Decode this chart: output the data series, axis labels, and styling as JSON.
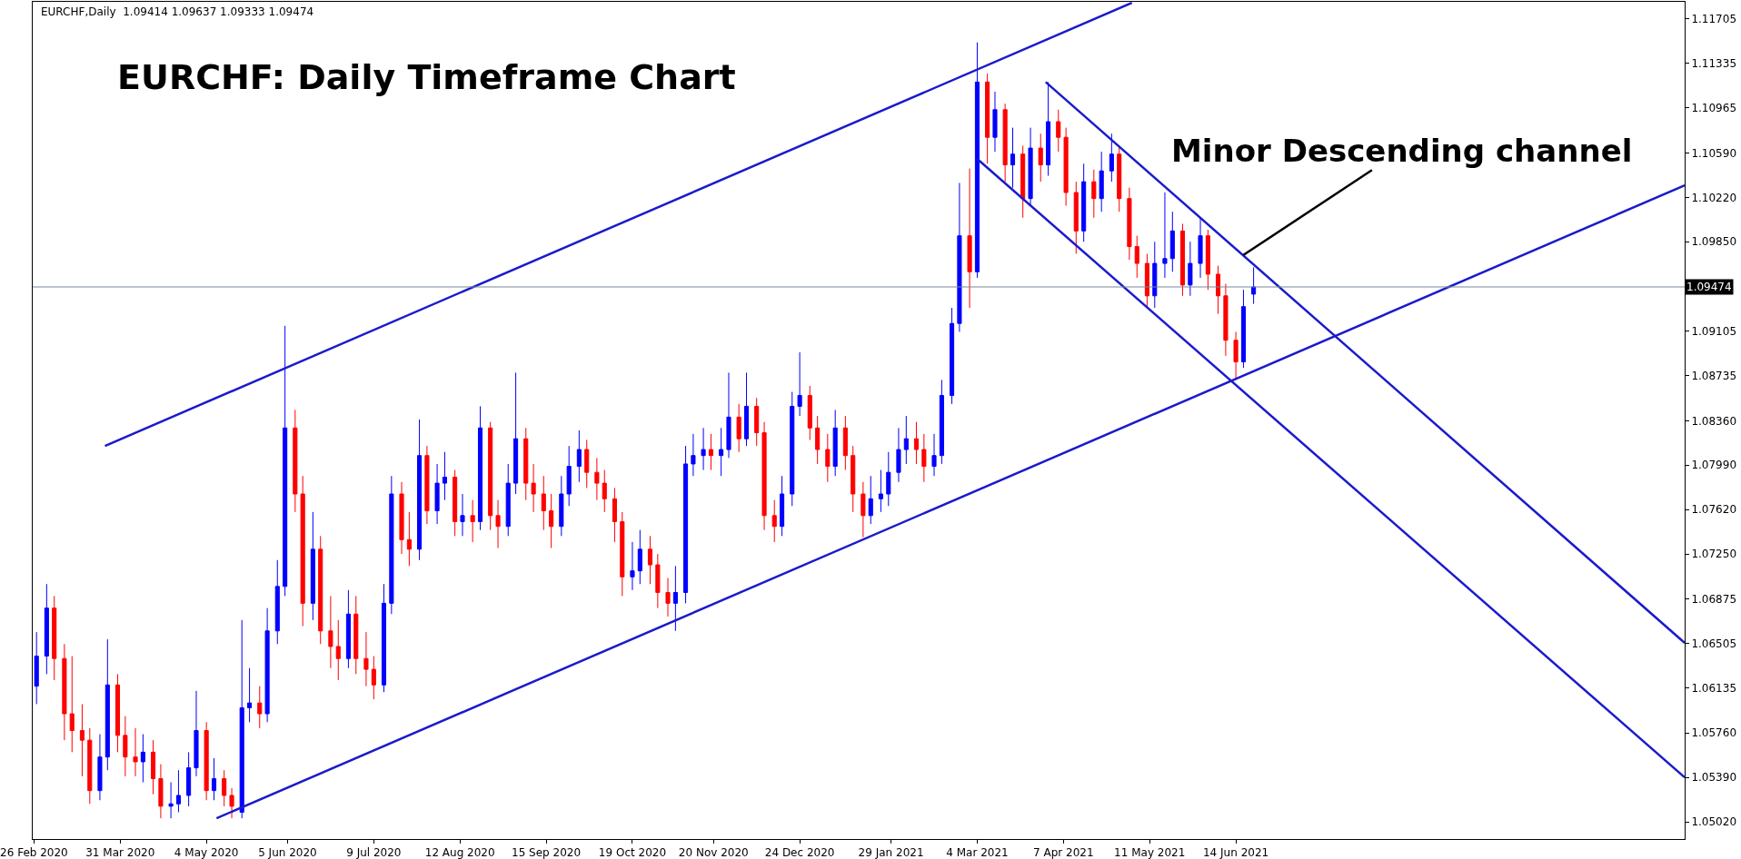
{
  "chart_data": {
    "type": "candlestick",
    "title": "EURCHF: Daily Timeframe Chart",
    "subtitle": "EURCHF,Daily  1.09414 1.09637 1.09333 1.09474",
    "x": [
      "2020-02-27",
      "2020-03-02",
      "2020-03-05",
      "2020-03-09",
      "2020-03-12",
      "2020-03-16",
      "2020-03-19",
      "2020-03-23",
      "2020-03-26",
      "2020-03-30",
      "2020-04-02",
      "2020-04-06",
      "2020-04-09",
      "2020-04-13",
      "2020-04-16",
      "2020-04-20",
      "2020-04-23",
      "2020-04-27",
      "2020-04-30",
      "2020-05-04",
      "2020-05-07",
      "2020-05-11",
      "2020-05-14",
      "2020-05-18",
      "2020-05-21",
      "2020-05-25",
      "2020-05-28",
      "2020-06-01",
      "2020-06-04",
      "2020-06-08",
      "2020-06-11",
      "2020-06-15",
      "2020-06-18",
      "2020-06-22",
      "2020-06-25",
      "2020-06-29",
      "2020-07-02",
      "2020-07-06",
      "2020-07-09",
      "2020-07-13",
      "2020-07-16",
      "2020-07-20",
      "2020-07-23",
      "2020-07-27",
      "2020-07-30",
      "2020-08-03",
      "2020-08-06",
      "2020-08-10",
      "2020-08-13",
      "2020-08-17",
      "2020-08-20",
      "2020-08-24",
      "2020-08-27",
      "2020-08-31",
      "2020-09-03",
      "2020-09-07",
      "2020-09-10",
      "2020-09-14",
      "2020-09-17",
      "2020-09-21",
      "2020-09-24",
      "2020-09-28",
      "2020-10-01",
      "2020-10-05",
      "2020-10-08",
      "2020-10-12",
      "2020-10-15",
      "2020-10-19",
      "2020-10-22",
      "2020-10-26",
      "2020-10-29",
      "2020-11-02",
      "2020-11-05",
      "2020-11-09",
      "2020-11-12",
      "2020-11-16",
      "2020-11-19",
      "2020-11-23",
      "2020-11-26",
      "2020-11-30",
      "2020-12-03",
      "2020-12-07",
      "2020-12-10",
      "2020-12-14",
      "2020-12-17",
      "2020-12-21",
      "2020-12-24",
      "2020-12-28",
      "2020-12-31",
      "2021-01-04",
      "2021-01-07",
      "2021-01-11",
      "2021-01-14",
      "2021-01-18",
      "2021-01-21",
      "2021-01-25",
      "2021-01-28",
      "2021-02-01",
      "2021-02-04",
      "2021-02-08",
      "2021-02-11",
      "2021-02-15",
      "2021-02-18",
      "2021-02-22",
      "2021-02-25",
      "2021-03-01",
      "2021-03-04",
      "2021-03-08",
      "2021-03-11",
      "2021-03-15",
      "2021-03-18",
      "2021-03-22",
      "2021-03-25",
      "2021-03-29",
      "2021-04-01",
      "2021-04-05",
      "2021-04-08",
      "2021-04-12",
      "2021-04-15",
      "2021-04-19",
      "2021-04-22",
      "2021-04-26",
      "2021-04-29",
      "2021-05-03",
      "2021-05-06",
      "2021-05-10",
      "2021-05-13",
      "2021-05-17",
      "2021-05-20",
      "2021-05-24",
      "2021-05-27",
      "2021-05-31",
      "2021-06-03",
      "2021-06-07",
      "2021-06-10",
      "2021-06-14",
      "2021-06-17",
      "2021-06-21"
    ],
    "ohlc": [
      [
        1.0615,
        1.066,
        1.06,
        1.064
      ],
      [
        1.064,
        1.07,
        1.0625,
        1.068
      ],
      [
        1.068,
        1.069,
        1.062,
        1.0638
      ],
      [
        1.0638,
        1.065,
        1.057,
        1.0592
      ],
      [
        1.0592,
        1.064,
        1.056,
        1.0578
      ],
      [
        1.0578,
        1.06,
        1.054,
        1.057
      ],
      [
        1.057,
        1.058,
        1.0517,
        1.0528
      ],
      [
        1.0528,
        1.0575,
        1.052,
        1.0556
      ],
      [
        1.0556,
        1.0654,
        1.0545,
        1.0616
      ],
      [
        1.0616,
        1.0625,
        1.056,
        1.0574
      ],
      [
        1.0574,
        1.059,
        1.054,
        1.0556
      ],
      [
        1.0556,
        1.058,
        1.054,
        1.0552
      ],
      [
        1.0552,
        1.0575,
        1.0535,
        1.056
      ],
      [
        1.056,
        1.057,
        1.0525,
        1.0538
      ],
      [
        1.0538,
        1.055,
        1.0505,
        1.0515
      ],
      [
        1.0515,
        1.0535,
        1.0505,
        1.0517
      ],
      [
        1.0517,
        1.0545,
        1.051,
        1.0524
      ],
      [
        1.0524,
        1.056,
        1.0515,
        1.0547
      ],
      [
        1.0547,
        1.0611,
        1.054,
        1.0578
      ],
      [
        1.0578,
        1.0585,
        1.052,
        1.0528
      ],
      [
        1.0528,
        1.0555,
        1.052,
        1.0538
      ],
      [
        1.0538,
        1.0545,
        1.0515,
        1.0524
      ],
      [
        1.0524,
        1.053,
        1.0505,
        1.0515
      ],
      [
        1.051,
        1.067,
        1.0505,
        1.0597
      ],
      [
        1.0597,
        1.063,
        1.0585,
        1.0601
      ],
      [
        1.0601,
        1.0615,
        1.058,
        1.0592
      ],
      [
        1.0592,
        1.068,
        1.0585,
        1.0661
      ],
      [
        1.0661,
        1.072,
        1.065,
        1.0698
      ],
      [
        1.0698,
        1.0915,
        1.069,
        1.083
      ],
      [
        1.083,
        1.0845,
        1.076,
        1.0775
      ],
      [
        1.0775,
        1.079,
        1.0665,
        1.0684
      ],
      [
        1.0684,
        1.076,
        1.067,
        1.0729
      ],
      [
        1.0729,
        1.074,
        1.065,
        1.0661
      ],
      [
        1.0661,
        1.069,
        1.063,
        1.0648
      ],
      [
        1.0648,
        1.067,
        1.062,
        1.0638
      ],
      [
        1.0638,
        1.0695,
        1.063,
        1.0675
      ],
      [
        1.0675,
        1.069,
        1.0625,
        1.0638
      ],
      [
        1.0638,
        1.066,
        1.0615,
        1.0629
      ],
      [
        1.0629,
        1.064,
        1.0604,
        1.0616
      ],
      [
        1.0616,
        1.07,
        1.061,
        1.0684
      ],
      [
        1.0684,
        1.079,
        1.0675,
        1.0775
      ],
      [
        1.0775,
        1.0785,
        1.0725,
        1.0737
      ],
      [
        1.0737,
        1.076,
        1.0715,
        1.0729
      ],
      [
        1.0729,
        1.0837,
        1.072,
        1.0807
      ],
      [
        1.0807,
        1.0815,
        1.075,
        1.0761
      ],
      [
        1.0761,
        1.08,
        1.075,
        1.0784
      ],
      [
        1.0784,
        1.081,
        1.077,
        1.0789
      ],
      [
        1.0789,
        1.0795,
        1.074,
        1.0752
      ],
      [
        1.0752,
        1.0775,
        1.074,
        1.0757
      ],
      [
        1.0757,
        1.077,
        1.0735,
        1.0752
      ],
      [
        1.0752,
        1.0848,
        1.0745,
        1.083
      ],
      [
        1.083,
        1.0835,
        1.0745,
        1.0757
      ],
      [
        1.0757,
        1.077,
        1.073,
        1.0748
      ],
      [
        1.0748,
        1.08,
        1.074,
        1.0784
      ],
      [
        1.0784,
        1.0876,
        1.0775,
        1.0821
      ],
      [
        1.0821,
        1.083,
        1.077,
        1.0784
      ],
      [
        1.0784,
        1.08,
        1.076,
        1.0775
      ],
      [
        1.0775,
        1.079,
        1.0745,
        1.0761
      ],
      [
        1.0761,
        1.0775,
        1.073,
        1.0748
      ],
      [
        1.0748,
        1.079,
        1.074,
        1.0775
      ],
      [
        1.0775,
        1.0815,
        1.0765,
        1.0798
      ],
      [
        1.0798,
        1.0828,
        1.0785,
        1.0812
      ],
      [
        1.0812,
        1.082,
        1.078,
        1.0793
      ],
      [
        1.0793,
        1.0805,
        1.077,
        1.0784
      ],
      [
        1.0784,
        1.0795,
        1.076,
        1.0771
      ],
      [
        1.0771,
        1.078,
        1.0735,
        1.0752
      ],
      [
        1.0752,
        1.076,
        1.069,
        1.0706
      ],
      [
        1.0706,
        1.0735,
        1.0695,
        1.0711
      ],
      [
        1.0711,
        1.0745,
        1.07,
        1.0729
      ],
      [
        1.0729,
        1.074,
        1.07,
        1.0716
      ],
      [
        1.0716,
        1.0725,
        1.068,
        1.0693
      ],
      [
        1.0693,
        1.0705,
        1.0673,
        1.0684
      ],
      [
        1.0684,
        1.0715,
        1.0661,
        1.0693
      ],
      [
        1.0693,
        1.0815,
        1.0684,
        1.08
      ],
      [
        1.08,
        1.0825,
        1.079,
        1.0807
      ],
      [
        1.0807,
        1.083,
        1.0795,
        1.0812
      ],
      [
        1.0812,
        1.0825,
        1.0795,
        1.0807
      ],
      [
        1.0807,
        1.083,
        1.079,
        1.0812
      ],
      [
        1.0812,
        1.0876,
        1.0805,
        1.0839
      ],
      [
        1.0839,
        1.085,
        1.081,
        1.0821
      ],
      [
        1.0821,
        1.0876,
        1.0815,
        1.0848
      ],
      [
        1.0848,
        1.0855,
        1.0815,
        1.0826
      ],
      [
        1.0826,
        1.0835,
        1.0745,
        1.0757
      ],
      [
        1.0757,
        1.077,
        1.0735,
        1.0748
      ],
      [
        1.0748,
        1.079,
        1.074,
        1.0775
      ],
      [
        1.0775,
        1.086,
        1.0765,
        1.0848
      ],
      [
        1.0848,
        1.0893,
        1.084,
        1.0857
      ],
      [
        1.0857,
        1.0865,
        1.082,
        1.083
      ],
      [
        1.083,
        1.084,
        1.08,
        1.0812
      ],
      [
        1.0812,
        1.0825,
        1.0785,
        1.0798
      ],
      [
        1.0798,
        1.0845,
        1.079,
        1.083
      ],
      [
        1.083,
        1.084,
        1.0795,
        1.0807
      ],
      [
        1.0807,
        1.0815,
        1.076,
        1.0775
      ],
      [
        1.0775,
        1.0785,
        1.0739,
        1.0757
      ],
      [
        1.0757,
        1.079,
        1.075,
        1.0771
      ],
      [
        1.0771,
        1.0795,
        1.076,
        1.0775
      ],
      [
        1.0775,
        1.081,
        1.0765,
        1.0793
      ],
      [
        1.0793,
        1.083,
        1.0785,
        1.0812
      ],
      [
        1.0812,
        1.084,
        1.08,
        1.0821
      ],
      [
        1.0821,
        1.0835,
        1.08,
        1.0812
      ],
      [
        1.0812,
        1.0825,
        1.0785,
        1.0798
      ],
      [
        1.0798,
        1.0825,
        1.079,
        1.0807
      ],
      [
        1.0807,
        1.087,
        1.08,
        1.0857
      ],
      [
        1.0857,
        1.093,
        1.085,
        1.0917
      ],
      [
        1.0917,
        1.1034,
        1.091,
        1.099
      ],
      [
        1.099,
        1.1046,
        1.093,
        1.096
      ],
      [
        1.096,
        1.1151,
        1.0955,
        1.1118
      ],
      [
        1.1118,
        1.1125,
        1.105,
        1.1072
      ],
      [
        1.1072,
        1.111,
        1.106,
        1.1095
      ],
      [
        1.1095,
        1.11,
        1.1035,
        1.1049
      ],
      [
        1.1049,
        1.108,
        1.103,
        1.1058
      ],
      [
        1.1058,
        1.1065,
        1.1005,
        1.1021
      ],
      [
        1.1021,
        1.108,
        1.1015,
        1.1063
      ],
      [
        1.1063,
        1.1075,
        1.1035,
        1.1049
      ],
      [
        1.1049,
        1.1118,
        1.104,
        1.1085
      ],
      [
        1.1085,
        1.1095,
        1.106,
        1.1072
      ],
      [
        1.1072,
        1.108,
        1.1015,
        1.1026
      ],
      [
        1.1026,
        1.1035,
        1.0975,
        1.0994
      ],
      [
        1.0994,
        1.105,
        1.0985,
        1.1035
      ],
      [
        1.1035,
        1.1045,
        1.1005,
        1.1021
      ],
      [
        1.1021,
        1.106,
        1.101,
        1.1044
      ],
      [
        1.1044,
        1.1075,
        1.1035,
        1.1058
      ],
      [
        1.1058,
        1.1065,
        1.101,
        1.1021
      ],
      [
        1.1021,
        1.103,
        1.097,
        1.0981
      ],
      [
        1.0981,
        1.099,
        1.0955,
        1.0967
      ],
      [
        1.0967,
        1.0975,
        1.093,
        1.094
      ],
      [
        1.094,
        1.0985,
        1.093,
        1.0967
      ],
      [
        1.0967,
        1.1026,
        1.0955,
        1.0971
      ],
      [
        1.0971,
        1.101,
        1.096,
        1.0994
      ],
      [
        1.0994,
        1.1,
        1.094,
        1.0949
      ],
      [
        1.0949,
        1.0985,
        1.094,
        1.0967
      ],
      [
        1.0967,
        1.1005,
        1.0955,
        1.099
      ],
      [
        1.099,
        1.0995,
        1.0945,
        1.0958
      ],
      [
        1.0958,
        1.0965,
        1.0925,
        1.094
      ],
      [
        1.094,
        1.095,
        1.089,
        1.0903
      ],
      [
        1.0903,
        1.091,
        1.0871,
        1.0885
      ],
      [
        1.0885,
        1.0945,
        1.088,
        1.0931
      ],
      [
        1.09414,
        1.09637,
        1.09333,
        1.09474
      ]
    ],
    "colors": [
      "#0000ff",
      "#0000ff",
      "#ff0000",
      "#ff0000",
      "#ff0000",
      "#ff0000",
      "#ff0000",
      "#0000ff",
      "#0000ff",
      "#ff0000",
      "#ff0000",
      "#ff0000",
      "#0000ff",
      "#ff0000",
      "#ff0000",
      "#0000ff",
      "#0000ff",
      "#0000ff",
      "#0000ff",
      "#ff0000",
      "#0000ff",
      "#ff0000",
      "#ff0000",
      "#0000ff",
      "#0000ff",
      "#ff0000",
      "#0000ff",
      "#0000ff",
      "#0000ff",
      "#ff0000",
      "#ff0000",
      "#0000ff",
      "#ff0000",
      "#ff0000",
      "#ff0000",
      "#0000ff",
      "#ff0000",
      "#ff0000",
      "#ff0000",
      "#0000ff",
      "#0000ff",
      "#ff0000",
      "#ff0000",
      "#0000ff",
      "#ff0000",
      "#0000ff",
      "#0000ff",
      "#ff0000",
      "#0000ff",
      "#ff0000",
      "#0000ff",
      "#ff0000",
      "#ff0000",
      "#0000ff",
      "#0000ff",
      "#ff0000",
      "#ff0000",
      "#ff0000",
      "#ff0000",
      "#0000ff",
      "#0000ff",
      "#0000ff",
      "#ff0000",
      "#ff0000",
      "#ff0000",
      "#ff0000",
      "#ff0000",
      "#0000ff",
      "#0000ff",
      "#ff0000",
      "#ff0000",
      "#ff0000",
      "#0000ff",
      "#0000ff",
      "#0000ff",
      "#0000ff",
      "#ff0000",
      "#0000ff",
      "#0000ff",
      "#ff0000",
      "#0000ff",
      "#ff0000",
      "#ff0000",
      "#ff0000",
      "#0000ff",
      "#0000ff",
      "#0000ff",
      "#ff0000",
      "#ff0000",
      "#ff0000",
      "#0000ff",
      "#ff0000",
      "#ff0000",
      "#ff0000",
      "#0000ff",
      "#0000ff",
      "#0000ff",
      "#0000ff",
      "#0000ff",
      "#ff0000",
      "#ff0000",
      "#0000ff",
      "#0000ff",
      "#0000ff",
      "#0000ff",
      "#ff0000",
      "#0000ff",
      "#ff0000",
      "#0000ff",
      "#ff0000",
      "#0000ff",
      "#ff0000",
      "#0000ff",
      "#ff0000",
      "#0000ff",
      "#ff0000",
      "#ff0000",
      "#ff0000",
      "#0000ff",
      "#ff0000",
      "#0000ff",
      "#0000ff",
      "#ff0000",
      "#ff0000",
      "#ff0000",
      "#ff0000",
      "#0000ff",
      "#0000ff",
      "#0000ff",
      "#ff0000",
      "#0000ff",
      "#0000ff",
      "#ff0000",
      "#ff0000",
      "#ff0000",
      "#ff0000",
      "#0000ff",
      "#0000ff"
    ],
    "series": [
      {
        "type": "line",
        "color": "#1a1acc",
        "x": [
          "2020-03-25",
          "2021-05-04"
        ],
        "values": [
          1.0815,
          1.1184
        ]
      },
      {
        "type": "line",
        "color": "#1a1acc",
        "x": [
          "2020-05-08",
          "2021-12-08"
        ],
        "values": [
          1.0505,
          1.1032
        ]
      },
      {
        "type": "line",
        "color": "#1a1acc",
        "x": [
          "2021-03-31",
          "2021-12-08"
        ],
        "values": [
          1.1118,
          1.0651
        ]
      },
      {
        "type": "line",
        "color": "#1a1acc",
        "x": [
          "2021-03-04",
          "2021-12-08"
        ],
        "values": [
          1.1054,
          1.0539
        ]
      }
    ],
    "annotations": [
      {
        "text": "Minor Descending channel",
        "x": "2021-06-17",
        "y": 1.0974
      }
    ],
    "ref_lines": [
      {
        "axis": "y",
        "value": 1.09474,
        "label": "1.09474",
        "color": "#778899"
      }
    ],
    "xlim": [
      "2020-02-25T12:00",
      "2021-12-08"
    ],
    "xticks": [
      {
        "value": "2020-02-26",
        "label": "26 Feb 2020"
      },
      {
        "value": "2020-03-31",
        "label": "31 Mar 2020"
      },
      {
        "value": "2020-05-04",
        "label": "4 May 2020"
      },
      {
        "value": "2020-06-05",
        "label": "5 Jun 2020"
      },
      {
        "value": "2020-07-09",
        "label": "9 Jul 2020"
      },
      {
        "value": "2020-08-12",
        "label": "12 Aug 2020"
      },
      {
        "value": "2020-09-15",
        "label": "15 Sep 2020"
      },
      {
        "value": "2020-10-19",
        "label": "19 Oct 2020"
      },
      {
        "value": "2020-11-20",
        "label": "20 Nov 2020"
      },
      {
        "value": "2020-12-24",
        "label": "24 Dec 2020"
      },
      {
        "value": "2021-01-29",
        "label": "29 Jan 2021"
      },
      {
        "value": "2021-03-04",
        "label": "4 Mar 2021"
      },
      {
        "value": "2021-04-07",
        "label": "7 Apr 2021"
      },
      {
        "value": "2021-05-11",
        "label": "11 May 2021"
      },
      {
        "value": "2021-06-14",
        "label": "14 Jun 2021"
      }
    ],
    "ylim": [
      1.04877,
      1.11848
    ],
    "yticks": [
      1.11705,
      1.11335,
      1.10965,
      {
        "value": 1.1059,
        "label": "1.10590"
      },
      {
        "value": 1.1022,
        "label": "1.10220"
      },
      {
        "value": 1.0985,
        "label": "1.09850"
      },
      1.09105,
      1.08735,
      {
        "value": 1.0836,
        "label": "1.08360"
      },
      {
        "value": 1.0799,
        "label": "1.07990"
      },
      {
        "value": 1.0762,
        "label": "1.07620"
      },
      {
        "value": 1.0725,
        "label": "1.07250"
      },
      1.06875,
      1.06505,
      1.06135,
      {
        "value": 1.0576,
        "label": "1.05760"
      },
      {
        "value": 1.0539,
        "label": "1.05390"
      },
      {
        "value": 1.0502,
        "label": "1.05020"
      }
    ],
    "grid": false
  }
}
